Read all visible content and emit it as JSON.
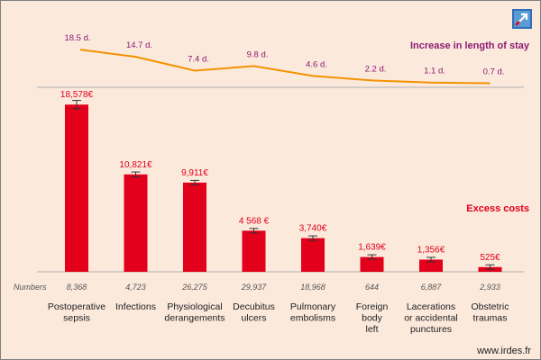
{
  "chart_data": {
    "type": "bar",
    "categories": [
      [
        "Postoperative",
        "sepsis"
      ],
      [
        "Infections"
      ],
      [
        "Physiological",
        "derangements"
      ],
      [
        "Decubitus",
        "ulcers"
      ],
      [
        "Pulmonary",
        "embolisms"
      ],
      [
        "Foreign",
        "body",
        "left"
      ],
      [
        "Lacerations",
        "or accidental",
        "punctures"
      ],
      [
        "Obstetric",
        "traumas"
      ]
    ],
    "excess_costs": {
      "title": "Excess costs",
      "values": [
        18578,
        10821,
        9911,
        4568,
        3740,
        1639,
        1356,
        525
      ],
      "value_labels": [
        "18,578€",
        "10,821€",
        "9,911€",
        "4 568 €",
        "3,740€",
        "1,639€",
        "1,356€",
        "525€"
      ],
      "ylim": [
        0,
        20000
      ],
      "color": "#e2001a"
    },
    "length_of_stay": {
      "title": "Increase in length of stay",
      "values": [
        18.5,
        14.7,
        7.4,
        9.8,
        4.6,
        2.2,
        1.1,
        0.7
      ],
      "value_labels": [
        "18.5 d.",
        "14.7 d.",
        "7.4 d.",
        "9.8 d.",
        "4.6 d.",
        "2.2 d.",
        "1.1 d.",
        "0.7 d."
      ],
      "line_color": "#f39200",
      "label_color": "#8e1a73"
    },
    "numbers": {
      "label": "Numbers",
      "values": [
        "8,368",
        "4,723",
        "26,275",
        "29,937",
        "18,968",
        "644",
        "6,887",
        "2,933"
      ]
    }
  },
  "footer": {
    "source": "www.irdes.fr"
  },
  "colors": {
    "background": "#fbe9dc",
    "baseline": "#b0b0b0",
    "numbers_text": "#555555",
    "category_text": "#222222"
  },
  "icons": {
    "logo": "expand-arrow-icon"
  }
}
